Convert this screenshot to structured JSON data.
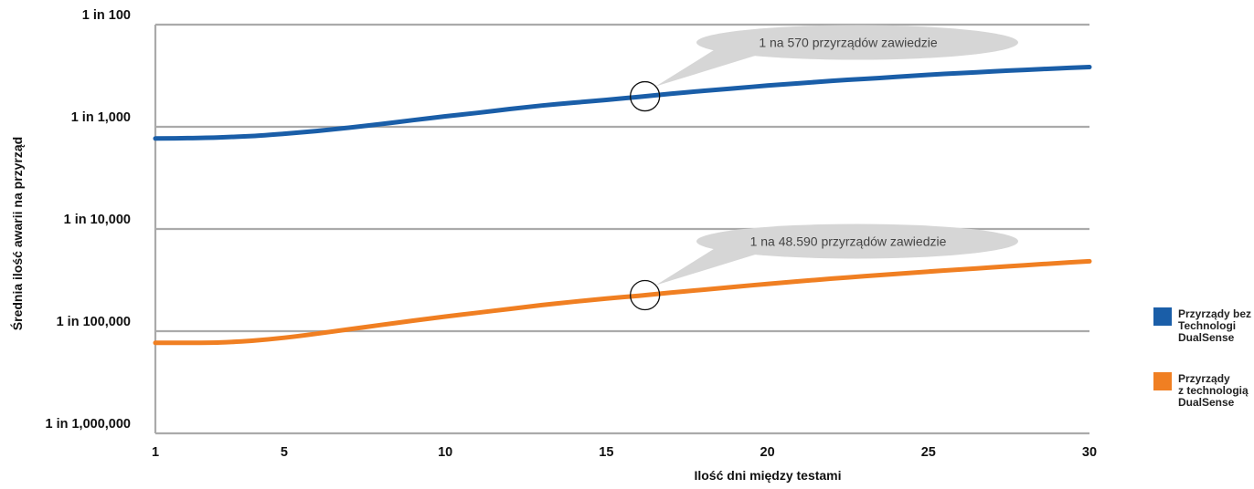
{
  "chart_data": {
    "type": "line",
    "xlabel": "Ilość dni między testami",
    "ylabel": "Średnia ilość awarii na przyrząd",
    "x_ticks": [
      1,
      5,
      10,
      15,
      20,
      25,
      30
    ],
    "xlim": [
      1,
      30
    ],
    "y_scale": "log",
    "y_ticks": [
      {
        "value": 100,
        "label": "1 in 100"
      },
      {
        "value": 1000,
        "label": "1 in 1,000"
      },
      {
        "value": 10000,
        "label": "1 in 10,000"
      },
      {
        "value": 100000,
        "label": "1 in 100,000"
      },
      {
        "value": 1000000,
        "label": "1 in 1,000,000"
      }
    ],
    "ylim": [
      100,
      1000000
    ],
    "grid": true,
    "legend_position": "right",
    "series": [
      {
        "name": "Przyrządy bez Technologi DualSense",
        "legend_lines": [
          "Przyrządy bez",
          "Technologi",
          "DualSense"
        ],
        "color": "#1a5ea8",
        "x": [
          1,
          2,
          3,
          4,
          5,
          6,
          7,
          8,
          9,
          10,
          11,
          12,
          13,
          14,
          15,
          16,
          17,
          18,
          19,
          20,
          21,
          22,
          23,
          24,
          25,
          26,
          27,
          28,
          29,
          30
        ],
        "y": [
          1300,
          1290,
          1270,
          1230,
          1170,
          1100,
          1020,
          940,
          860,
          790,
          730,
          670,
          620,
          580,
          545,
          510,
          475,
          445,
          420,
          395,
          375,
          355,
          340,
          325,
          310,
          298,
          287,
          277,
          268,
          260
        ]
      },
      {
        "name": "Przyrządy z technologią DualSense",
        "legend_lines": [
          "Przyrządy",
          "z technologią",
          "DualSense"
        ],
        "color": "#f07f22",
        "x": [
          1,
          2,
          3,
          4,
          5,
          6,
          7,
          8,
          9,
          10,
          11,
          12,
          13,
          14,
          15,
          16,
          17,
          18,
          19,
          20,
          21,
          22,
          23,
          24,
          25,
          26,
          27,
          28,
          29,
          30
        ],
        "y": [
          130000,
          130000,
          129000,
          124000,
          116000,
          106000,
          96000,
          87000,
          79000,
          72000,
          66000,
          60500,
          55500,
          51500,
          48000,
          45000,
          42000,
          39300,
          36800,
          34500,
          32500,
          30600,
          29000,
          27500,
          26100,
          24900,
          23700,
          22600,
          21600,
          20700
        ]
      }
    ],
    "annotations": [
      {
        "text": "1 na 570 przyrządów zawiedzie",
        "x": 16.2,
        "series": 0
      },
      {
        "text": "1 na 48.590 przyrządów zawiedzie",
        "x": 16.2,
        "series": 1
      }
    ]
  },
  "colors": {
    "grid": "#aaaaaa",
    "callout_fill": "#d6d6d6",
    "marker_stroke": "#111111"
  }
}
